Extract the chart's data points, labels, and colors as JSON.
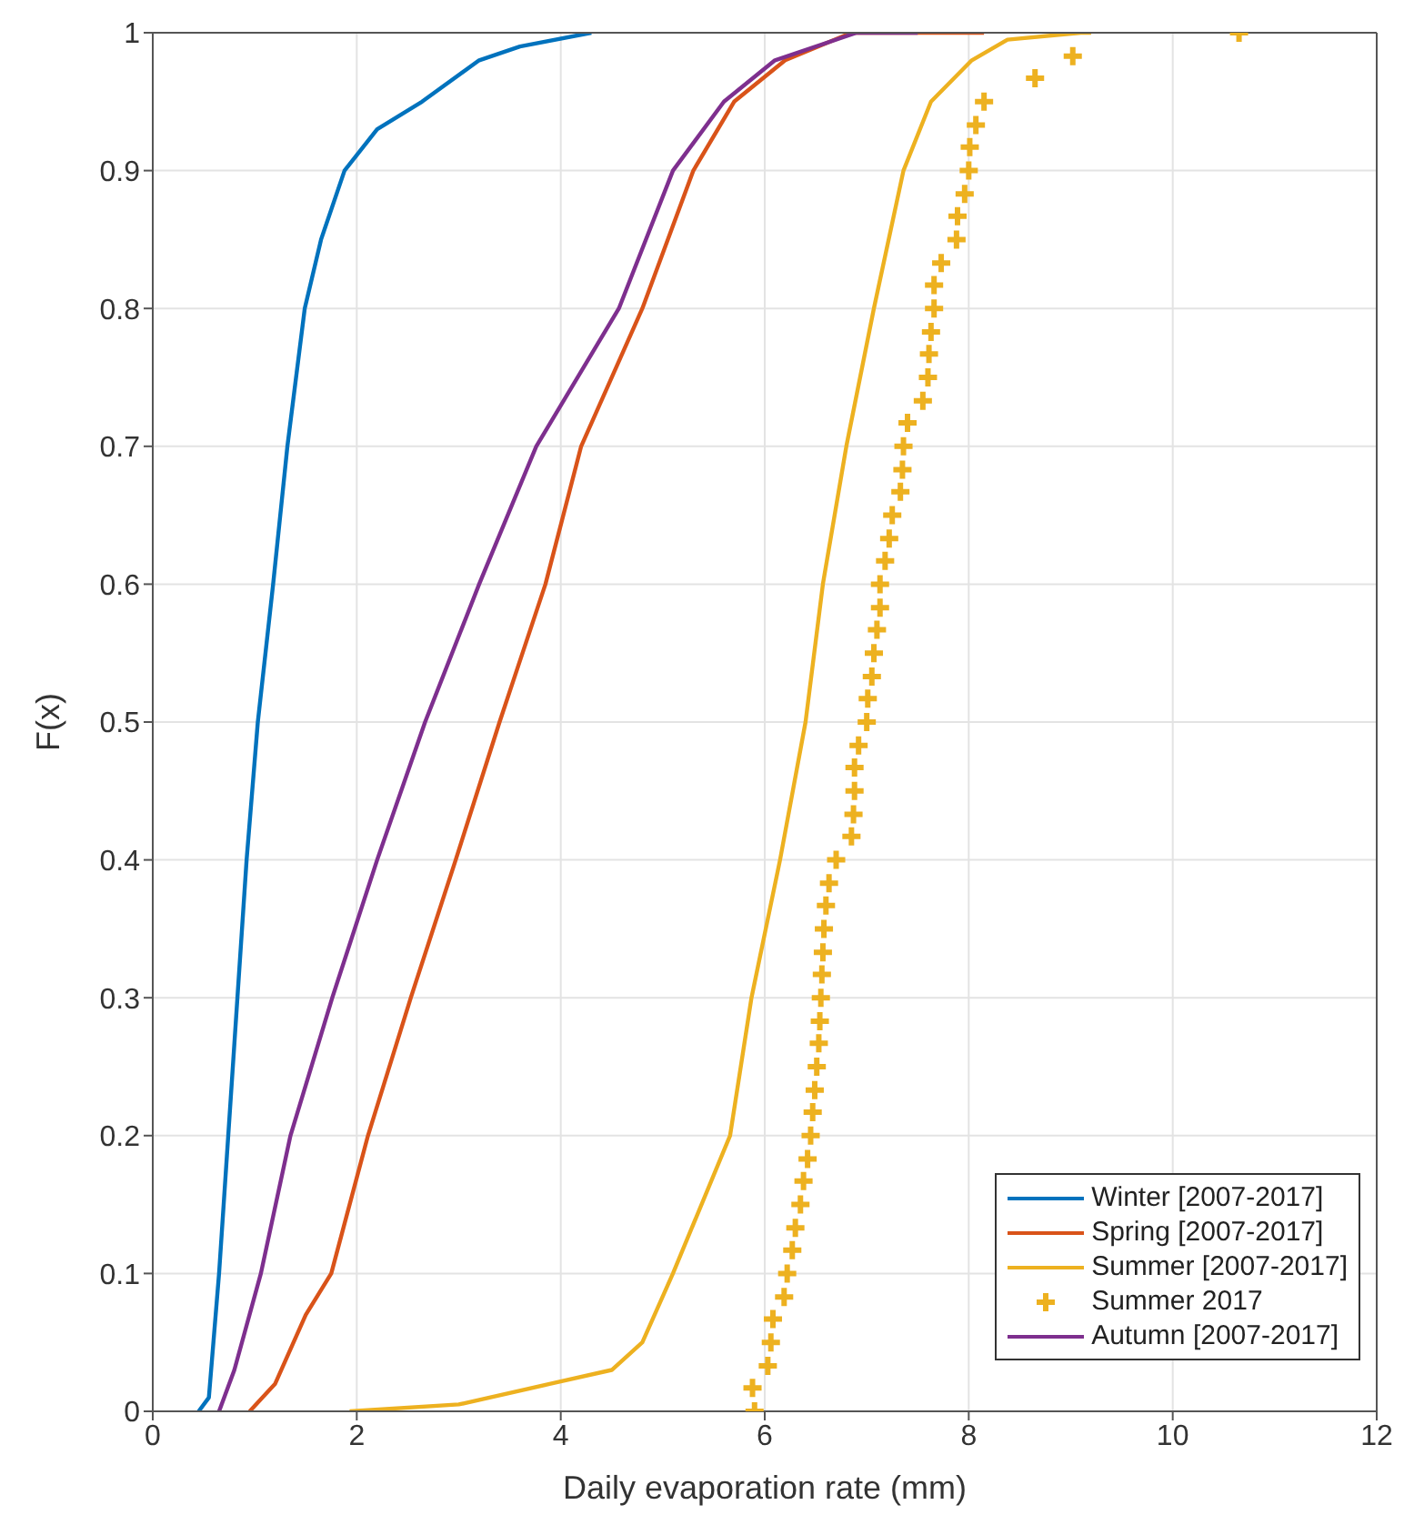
{
  "chart_data": {
    "type": "line",
    "xlabel": "Daily evaporation rate (mm)",
    "ylabel": "F(x)",
    "xlim": [
      0,
      12
    ],
    "xticks": [
      0,
      2,
      4,
      6,
      8,
      10,
      12
    ],
    "ylim": [
      0,
      1
    ],
    "yticks": [
      0,
      0.1,
      0.2,
      0.3,
      0.4,
      0.5,
      0.6,
      0.7,
      0.8,
      0.9,
      1
    ],
    "grid": true,
    "legend": "bottom right",
    "line_style": "solid",
    "series": [
      {
        "name": "Winter [2007-2017]",
        "color": "#0072bd",
        "x": [
          0.45,
          0.55,
          0.65,
          0.74,
          0.83,
          0.92,
          1.03,
          1.18,
          1.32,
          1.49,
          1.65,
          1.88,
          2.2,
          2.64,
          3.2,
          3.6,
          4.3
        ],
        "values": [
          0,
          0.01,
          0.1,
          0.2,
          0.3,
          0.4,
          0.5,
          0.6,
          0.7,
          0.8,
          0.85,
          0.9,
          0.93,
          0.95,
          0.98,
          0.99,
          1
        ]
      },
      {
        "name": "Spring [2007-2017]",
        "color": "#d95319",
        "x": [
          0.95,
          1.2,
          1.5,
          1.75,
          2.11,
          2.53,
          2.97,
          3.4,
          3.85,
          4.2,
          4.8,
          5.3,
          5.7,
          6.2,
          6.85,
          8.15
        ],
        "values": [
          0,
          0.02,
          0.07,
          0.1,
          0.2,
          0.3,
          0.4,
          0.5,
          0.6,
          0.7,
          0.8,
          0.9,
          0.95,
          0.98,
          1,
          1
        ]
      },
      {
        "name": "Summer [2007-2017]",
        "color": "#edb120",
        "x": [
          1.93,
          3.0,
          3.9,
          4.5,
          4.8,
          5.1,
          5.66,
          5.87,
          6.15,
          6.4,
          6.57,
          6.8,
          7.07,
          7.36,
          7.63,
          8.03,
          8.38,
          9.1,
          9.2
        ],
        "values": [
          0,
          0.005,
          0.02,
          0.03,
          0.05,
          0.1,
          0.2,
          0.3,
          0.4,
          0.5,
          0.6,
          0.7,
          0.8,
          0.9,
          0.95,
          0.98,
          0.995,
          1,
          1
        ]
      },
      {
        "name": "Summer 2017",
        "type": "scatter",
        "marker": "cross",
        "color": "#edb120",
        "x": [
          5.9,
          5.88,
          6.03,
          6.06,
          6.08,
          6.19,
          6.22,
          6.27,
          6.3,
          6.35,
          6.38,
          6.42,
          6.45,
          6.47,
          6.49,
          6.51,
          6.53,
          6.54,
          6.55,
          6.56,
          6.57,
          6.58,
          6.6,
          6.63,
          6.7,
          6.85,
          6.87,
          6.88,
          6.88,
          6.92,
          7.0,
          7.01,
          7.05,
          7.07,
          7.1,
          7.13,
          7.13,
          7.18,
          7.22,
          7.25,
          7.33,
          7.35,
          7.36,
          7.4,
          7.55,
          7.6,
          7.61,
          7.63,
          7.66,
          7.66,
          7.73,
          7.88,
          7.89,
          7.96,
          8.0,
          8.01,
          8.07,
          8.15,
          8.65,
          9.02,
          10.65
        ],
        "values": [
          0,
          0.017,
          0.033,
          0.05,
          0.067,
          0.083,
          0.1,
          0.117,
          0.133,
          0.15,
          0.167,
          0.183,
          0.2,
          0.217,
          0.233,
          0.25,
          0.267,
          0.283,
          0.3,
          0.317,
          0.333,
          0.35,
          0.367,
          0.383,
          0.4,
          0.417,
          0.433,
          0.45,
          0.467,
          0.483,
          0.5,
          0.517,
          0.533,
          0.55,
          0.567,
          0.583,
          0.6,
          0.617,
          0.633,
          0.65,
          0.667,
          0.683,
          0.7,
          0.717,
          0.733,
          0.75,
          0.767,
          0.783,
          0.8,
          0.817,
          0.833,
          0.85,
          0.867,
          0.883,
          0.9,
          0.917,
          0.933,
          0.95,
          0.967,
          0.983,
          1
        ]
      },
      {
        "name": "Autumn [2007-2017]",
        "color": "#7e2f8e",
        "x": [
          0.65,
          0.8,
          1.06,
          1.35,
          1.76,
          2.2,
          2.67,
          3.2,
          3.76,
          4.57,
          5.1,
          5.6,
          6.1,
          6.9,
          7.5
        ],
        "values": [
          0,
          0.03,
          0.1,
          0.2,
          0.3,
          0.4,
          0.5,
          0.6,
          0.7,
          0.8,
          0.9,
          0.95,
          0.98,
          1,
          1
        ]
      }
    ]
  }
}
